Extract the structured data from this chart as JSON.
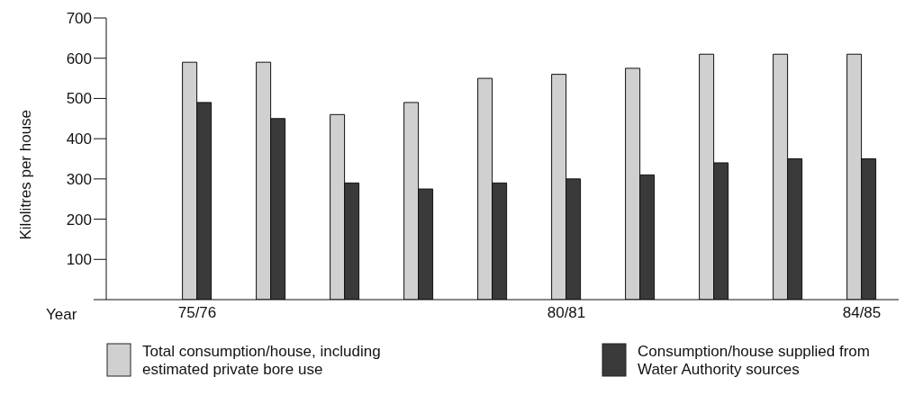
{
  "chart_data": {
    "type": "bar",
    "ylabel": "Kilolitres per house",
    "xlabel": "Year",
    "categories": [
      "75/76",
      null,
      null,
      null,
      null,
      "80/81",
      null,
      null,
      null,
      "84/85"
    ],
    "series": [
      {
        "name": "Total consumption/house, including estimated private bore use",
        "color": "#d0d0d0",
        "values": [
          590,
          590,
          460,
          490,
          550,
          560,
          575,
          610,
          610,
          610
        ]
      },
      {
        "name": "Consumption/house supplied from Water Authority sources",
        "color": "#3a3a3a",
        "values": [
          490,
          450,
          290,
          275,
          290,
          300,
          310,
          340,
          350,
          350
        ]
      }
    ],
    "ylim": [
      0,
      700
    ],
    "yticks": [
      {
        "value": 0,
        "label": null
      },
      100,
      200,
      300,
      400,
      500,
      600,
      700
    ],
    "grid": false,
    "legend": "bottom"
  }
}
